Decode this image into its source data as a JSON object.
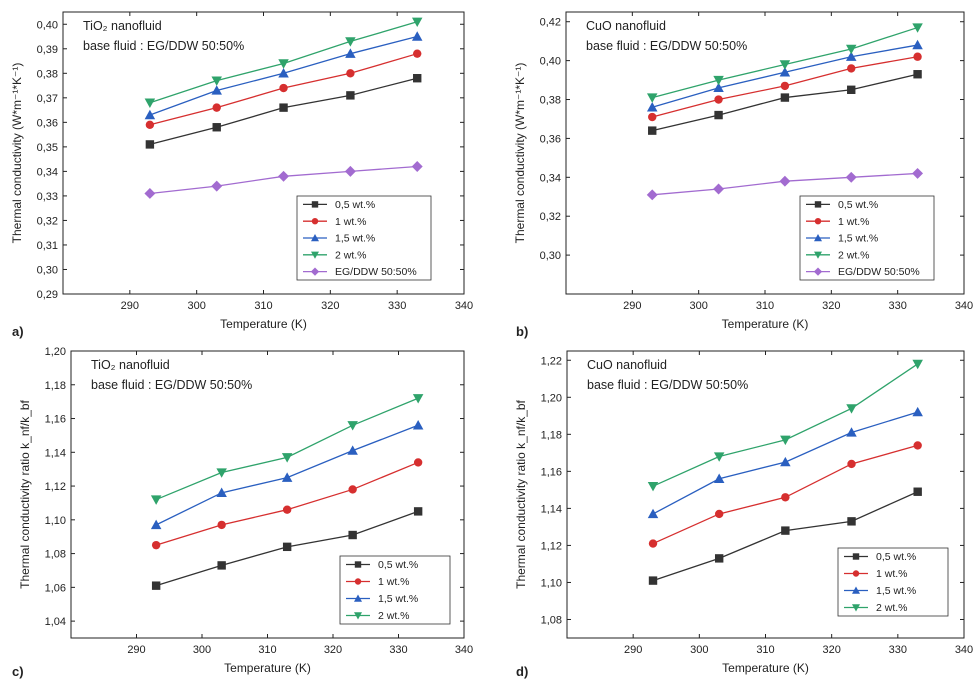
{
  "chart_data": [
    {
      "id": "a",
      "type": "line",
      "panel_label": "a)",
      "title": "",
      "annotation": [
        "TiO₂ nanofluid",
        "base fluid : EG/DDW 50:50%"
      ],
      "xlabel": "Temperature (K)",
      "ylabel": "Thermal conductivity (W*m⁻¹*K⁻¹)",
      "xlim": [
        280,
        340
      ],
      "ylim": [
        0.29,
        0.405
      ],
      "xticks": [
        290,
        300,
        310,
        320,
        330,
        340
      ],
      "xtick_labels": [
        "290",
        "300",
        "310",
        "320",
        "330",
        "340"
      ],
      "yticks": [
        0.29,
        0.3,
        0.31,
        0.32,
        0.33,
        0.34,
        0.35,
        0.36,
        0.37,
        0.38,
        0.39,
        0.4
      ],
      "ytick_labels": [
        "0,29",
        "0,30",
        "0,31",
        "0,32",
        "0,33",
        "0,34",
        "0,35",
        "0,36",
        "0,37",
        "0,38",
        "0,39",
        "0,40"
      ],
      "legend_position": "bottom-right",
      "x": [
        293,
        303,
        313,
        323,
        333
      ],
      "series": [
        {
          "name": "0,5 wt.%",
          "color": "#333333",
          "marker": "square",
          "values": [
            0.351,
            0.358,
            0.366,
            0.371,
            0.378
          ]
        },
        {
          "name": "1 wt.%",
          "color": "#d62f2f",
          "marker": "circle",
          "values": [
            0.359,
            0.366,
            0.374,
            0.38,
            0.388
          ]
        },
        {
          "name": "1,5 wt.%",
          "color": "#2a5fc0",
          "marker": "triangle-up",
          "values": [
            0.363,
            0.373,
            0.38,
            0.388,
            0.395
          ]
        },
        {
          "name": "2 wt.%",
          "color": "#2fa36b",
          "marker": "triangle-down",
          "values": [
            0.368,
            0.377,
            0.384,
            0.393,
            0.401
          ]
        },
        {
          "name": "EG/DDW 50:50%",
          "color": "#a26bd0",
          "marker": "diamond",
          "values": [
            0.331,
            0.334,
            0.338,
            0.34,
            0.342
          ]
        }
      ]
    },
    {
      "id": "b",
      "type": "line",
      "panel_label": "b)",
      "title": "",
      "annotation": [
        "CuO nanofluid",
        "base fluid : EG/DDW 50:50%"
      ],
      "xlabel": "Temperature (K)",
      "ylabel": "Thermal conductivity (W*m⁻¹*K⁻¹)",
      "xlim": [
        280,
        340
      ],
      "ylim": [
        0.28,
        0.425
      ],
      "xticks": [
        290,
        300,
        310,
        320,
        330,
        340
      ],
      "xtick_labels": [
        "290",
        "300",
        "310",
        "320",
        "330",
        "340"
      ],
      "yticks": [
        0.3,
        0.32,
        0.34,
        0.36,
        0.38,
        0.4,
        0.42
      ],
      "ytick_labels": [
        "0,30",
        "0,32",
        "0,34",
        "0,36",
        "0,38",
        "0,40",
        "0,42"
      ],
      "legend_position": "bottom-right",
      "x": [
        293,
        303,
        313,
        323,
        333
      ],
      "series": [
        {
          "name": "0,5 wt.%",
          "color": "#333333",
          "marker": "square",
          "values": [
            0.364,
            0.372,
            0.381,
            0.385,
            0.393
          ]
        },
        {
          "name": "1 wt.%",
          "color": "#d62f2f",
          "marker": "circle",
          "values": [
            0.371,
            0.38,
            0.387,
            0.396,
            0.402
          ]
        },
        {
          "name": "1,5 wt.%",
          "color": "#2a5fc0",
          "marker": "triangle-up",
          "values": [
            0.376,
            0.386,
            0.394,
            0.402,
            0.408
          ]
        },
        {
          "name": "2 wt.%",
          "color": "#2fa36b",
          "marker": "triangle-down",
          "values": [
            0.381,
            0.39,
            0.398,
            0.406,
            0.417
          ]
        },
        {
          "name": "EG/DDW 50:50%",
          "color": "#a26bd0",
          "marker": "diamond",
          "values": [
            0.331,
            0.334,
            0.338,
            0.34,
            0.342
          ]
        }
      ]
    },
    {
      "id": "c",
      "type": "line",
      "panel_label": "c)",
      "title": "",
      "annotation": [
        "TiO₂ nanofluid",
        "base fluid : EG/DDW 50:50%"
      ],
      "xlabel": "Temperature (K)",
      "ylabel": "Thermal conductivity ratio k_nf/k_bf",
      "xlim": [
        280,
        340
      ],
      "ylim": [
        1.03,
        1.2
      ],
      "xticks": [
        290,
        300,
        310,
        320,
        330,
        340
      ],
      "xtick_labels": [
        "290",
        "300",
        "310",
        "320",
        "330",
        "340"
      ],
      "yticks": [
        1.04,
        1.06,
        1.08,
        1.1,
        1.12,
        1.14,
        1.16,
        1.18,
        1.2
      ],
      "ytick_labels": [
        "1,04",
        "1,06",
        "1,08",
        "1,10",
        "1,12",
        "1,14",
        "1,16",
        "1,18",
        "1,20"
      ],
      "legend_position": "bottom-right",
      "x": [
        293,
        303,
        313,
        323,
        333
      ],
      "series": [
        {
          "name": "0,5 wt.%",
          "color": "#333333",
          "marker": "square",
          "values": [
            1.061,
            1.073,
            1.084,
            1.091,
            1.105
          ]
        },
        {
          "name": "1 wt.%",
          "color": "#d62f2f",
          "marker": "circle",
          "values": [
            1.085,
            1.097,
            1.106,
            1.118,
            1.134
          ]
        },
        {
          "name": "1,5 wt.%",
          "color": "#2a5fc0",
          "marker": "triangle-up",
          "values": [
            1.097,
            1.116,
            1.125,
            1.141,
            1.156
          ]
        },
        {
          "name": "2 wt.%",
          "color": "#2fa36b",
          "marker": "triangle-down",
          "values": [
            1.112,
            1.128,
            1.137,
            1.156,
            1.172
          ]
        }
      ]
    },
    {
      "id": "d",
      "type": "line",
      "panel_label": "d)",
      "title": "",
      "annotation": [
        "CuO nanofluid",
        "base fluid : EG/DDW 50:50%"
      ],
      "xlabel": "Temperature (K)",
      "ylabel": "Thermal conductivity ratio k_nf/k_bf",
      "xlim": [
        280,
        340
      ],
      "ylim": [
        1.07,
        1.225
      ],
      "xticks": [
        290,
        300,
        310,
        320,
        330,
        340
      ],
      "xtick_labels": [
        "290",
        "300",
        "310",
        "320",
        "330",
        "340"
      ],
      "yticks": [
        1.08,
        1.1,
        1.12,
        1.14,
        1.16,
        1.18,
        1.2,
        1.22
      ],
      "ytick_labels": [
        "1,08",
        "1,10",
        "1,12",
        "1,14",
        "1,16",
        "1,18",
        "1,20",
        "1,22"
      ],
      "legend_position": "bottom-right",
      "x": [
        293,
        303,
        313,
        323,
        333
      ],
      "series": [
        {
          "name": "0,5 wt.%",
          "color": "#333333",
          "marker": "square",
          "values": [
            1.101,
            1.113,
            1.128,
            1.133,
            1.149
          ]
        },
        {
          "name": "1 wt.%",
          "color": "#d62f2f",
          "marker": "circle",
          "values": [
            1.121,
            1.137,
            1.146,
            1.164,
            1.174
          ]
        },
        {
          "name": "1,5 wt.%",
          "color": "#2a5fc0",
          "marker": "triangle-up",
          "values": [
            1.137,
            1.156,
            1.165,
            1.181,
            1.192
          ]
        },
        {
          "name": "2 wt.%",
          "color": "#2fa36b",
          "marker": "triangle-down",
          "values": [
            1.152,
            1.168,
            1.177,
            1.194,
            1.218
          ]
        }
      ]
    }
  ]
}
